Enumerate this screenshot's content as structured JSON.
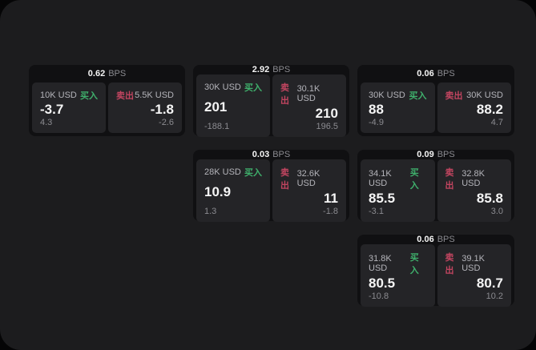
{
  "labels": {
    "bps_unit": "BPS",
    "buy": "买入",
    "sell": "卖出"
  },
  "colors": {
    "buy_green": "#3fb06c",
    "sell_red": "#c24560",
    "panel_bg": "#1c1c1e",
    "card_bg": "#101012",
    "tile_bg": "#242427"
  },
  "cards": [
    {
      "bps": "0.62",
      "grid": {
        "row": 1,
        "col": 1
      },
      "buy": {
        "amount": "10K USD",
        "price": "-3.7",
        "delta": "4.3"
      },
      "sell": {
        "amount": "5.5K USD",
        "price": "-1.8",
        "delta": "-2.6"
      }
    },
    {
      "bps": "2.92",
      "grid": {
        "row": 1,
        "col": 2
      },
      "buy": {
        "amount": "30K USD",
        "price": "201",
        "delta": "-188.1"
      },
      "sell": {
        "amount": "30.1K USD",
        "price": "210",
        "delta": "196.5"
      }
    },
    {
      "bps": "0.06",
      "grid": {
        "row": 1,
        "col": 3
      },
      "buy": {
        "amount": "30K USD",
        "price": "88",
        "delta": "-4.9"
      },
      "sell": {
        "amount": "30K USD",
        "price": "88.2",
        "delta": "4.7"
      }
    },
    {
      "bps": "0.03",
      "grid": {
        "row": 2,
        "col": 2
      },
      "buy": {
        "amount": "28K USD",
        "price": "10.9",
        "delta": "1.3"
      },
      "sell": {
        "amount": "32.6K USD",
        "price": "11",
        "delta": "-1.8"
      }
    },
    {
      "bps": "0.09",
      "grid": {
        "row": 2,
        "col": 3
      },
      "buy": {
        "amount": "34.1K USD",
        "price": "85.5",
        "delta": "-3.1"
      },
      "sell": {
        "amount": "32.8K USD",
        "price": "85.8",
        "delta": "3.0"
      }
    },
    {
      "bps": "0.06",
      "grid": {
        "row": 3,
        "col": 3
      },
      "buy": {
        "amount": "31.8K USD",
        "price": "80.5",
        "delta": "-10.8"
      },
      "sell": {
        "amount": "39.1K USD",
        "price": "80.7",
        "delta": "10.2"
      }
    }
  ]
}
